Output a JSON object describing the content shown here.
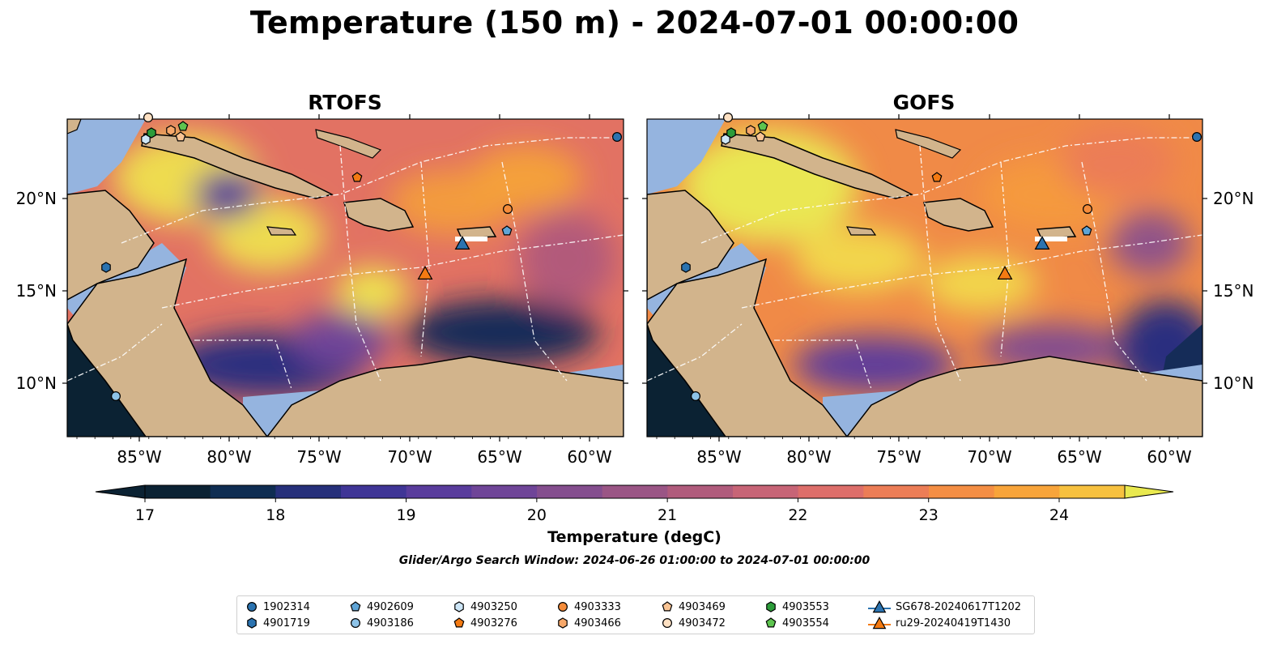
{
  "title": "Temperature (150 m) - 2024-07-01 00:00:00",
  "panels": [
    {
      "title": "RTOFS"
    },
    {
      "title": "GOFS"
    }
  ],
  "axes": {
    "lon_ticks": [
      "85°W",
      "80°W",
      "75°W",
      "70°W",
      "65°W",
      "60°W"
    ],
    "lat_ticks": [
      "20°N",
      "15°N",
      "10°N"
    ]
  },
  "colorbar": {
    "label": "Temperature (degC)",
    "ticks": [
      "17",
      "18",
      "19",
      "20",
      "21",
      "22",
      "23",
      "24"
    ],
    "min": 16.5,
    "max": 24.5,
    "extend": "both",
    "colors": [
      "#0b2233",
      "#0f2d52",
      "#26307a",
      "#3f3596",
      "#593c9c",
      "#6f4598",
      "#844e8e",
      "#9a5585",
      "#b05b7c",
      "#c76476",
      "#dd6e6a",
      "#ec7d56",
      "#f48e44",
      "#f8a43a",
      "#f7c13f",
      "#e9e94f"
    ]
  },
  "search_window": "Glider/Argo Search Window: 2024-06-26 01:00:00 to 2024-07-01 00:00:00",
  "legend": [
    {
      "label": "1902314",
      "marker": "circle",
      "color": "#2b73b0"
    },
    {
      "label": "4901719",
      "marker": "hexagon",
      "color": "#2b73b0"
    },
    {
      "label": "4902609",
      "marker": "pentagon",
      "color": "#5fa4d6"
    },
    {
      "label": "4903186",
      "marker": "circle",
      "color": "#8dc3e8"
    },
    {
      "label": "4903250",
      "marker": "hexagon",
      "color": "#cde6f7"
    },
    {
      "label": "4903276",
      "marker": "pentagon",
      "color": "#f47a12"
    },
    {
      "label": "4903333",
      "marker": "circle",
      "color": "#f58c3a"
    },
    {
      "label": "4903466",
      "marker": "hexagon",
      "color": "#f7a86a"
    },
    {
      "label": "4903469",
      "marker": "pentagon",
      "color": "#f9c494"
    },
    {
      "label": "4903472",
      "marker": "circle",
      "color": "#fde0c2"
    },
    {
      "label": "4903553",
      "marker": "hexagon",
      "color": "#2c9c3a"
    },
    {
      "label": "4903554",
      "marker": "pentagon",
      "color": "#5dc44f"
    },
    {
      "label": "SG678-20240617T1202",
      "marker": "triangle-line",
      "color": "#2b73b0"
    },
    {
      "label": "ru29-20240419T1430",
      "marker": "triangle-line",
      "color": "#f47a12"
    }
  ],
  "map_colors": {
    "land": "#d2b48c",
    "shelf": "#95b4df",
    "deep_cold": "#0b2233"
  }
}
